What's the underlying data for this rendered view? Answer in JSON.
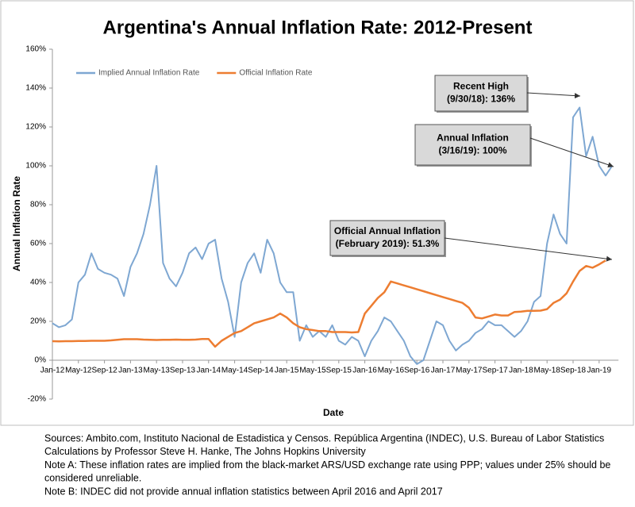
{
  "chart_data": {
    "type": "line",
    "title": "Argentina's Annual Inflation Rate: 2012-Present",
    "x_label": "Date",
    "y_label": "Annual Inflation Rate",
    "categories": [
      "Jan-12",
      null,
      null,
      null,
      "May-12",
      null,
      null,
      null,
      "Sep-12",
      null,
      null,
      null,
      "Jan-13",
      null,
      null,
      null,
      "May-13",
      null,
      null,
      null,
      "Sep-13",
      null,
      null,
      null,
      "Jan-14",
      null,
      null,
      null,
      "May-14",
      null,
      null,
      null,
      "Sep-14",
      null,
      null,
      null,
      "Jan-15",
      null,
      null,
      null,
      "May-15",
      null,
      null,
      null,
      "Sep-15",
      null,
      null,
      null,
      "Jan-16",
      null,
      null,
      null,
      "May-16",
      null,
      null,
      null,
      "Sep-16",
      null,
      null,
      null,
      "Jan-17",
      null,
      null,
      null,
      "May-17",
      null,
      null,
      null,
      "Sep-17",
      null,
      null,
      null,
      "Jan-18",
      null,
      null,
      null,
      "May-18",
      null,
      null,
      null,
      "Sep-18",
      null,
      null,
      null,
      "Jan-19",
      null,
      null
    ],
    "series": [
      {
        "name": "Implied Annual Inflation Rate",
        "color": "#7ea7d2",
        "values": [
          19,
          17,
          18,
          21,
          40,
          44,
          55,
          47,
          45,
          44,
          42,
          33,
          48,
          55,
          65,
          80,
          100,
          50,
          42,
          38,
          45,
          55,
          58,
          52,
          60,
          62,
          42,
          30,
          12,
          40,
          50,
          55,
          45,
          62,
          55,
          40,
          35,
          35,
          10,
          18,
          12,
          15,
          12,
          18,
          10,
          8,
          12,
          10,
          2,
          10,
          15,
          22,
          20,
          15,
          10,
          2,
          -2,
          0,
          10,
          20,
          18,
          10,
          5,
          8,
          10,
          14,
          16,
          20,
          18,
          18,
          15,
          12,
          15,
          20,
          30,
          33,
          60,
          75,
          65,
          60,
          125,
          130,
          105,
          115,
          100,
          95,
          100
        ]
      },
      {
        "name": "Official Inflation Rate",
        "color": "#ed7d31",
        "values": [
          9.8,
          9.7,
          9.8,
          9.8,
          9.9,
          9.9,
          10,
          10,
          10,
          10.2,
          10.5,
          10.8,
          10.8,
          10.8,
          10.6,
          10.5,
          10.4,
          10.5,
          10.5,
          10.6,
          10.5,
          10.5,
          10.6,
          10.9,
          10.9,
          7,
          10,
          12,
          14,
          15,
          17,
          19,
          20,
          21,
          22,
          24,
          22,
          19,
          17,
          16,
          15.5,
          15,
          15,
          14.5,
          14.5,
          14.5,
          14.3,
          14.5,
          24,
          28,
          32,
          35,
          40.5,
          39.5,
          38.5,
          37.5,
          36.5,
          35.5,
          34.5,
          33.5,
          32.5,
          31.5,
          30.5,
          29.5,
          27,
          22,
          21.5,
          22.5,
          23.5,
          23,
          23,
          24.8,
          25,
          25.4,
          25.4,
          25.5,
          26.3,
          29.5,
          31.2,
          34.4,
          40.5,
          45.9,
          48.5,
          47.6,
          49.3,
          51.3,
          null
        ]
      }
    ],
    "ylim": [
      -20,
      160
    ],
    "yticks": [
      {
        "value": -20,
        "label": "-20%"
      },
      {
        "value": 0,
        "label": "0%"
      },
      {
        "value": 20,
        "label": "20%"
      },
      {
        "value": 40,
        "label": "40%"
      },
      {
        "value": 60,
        "label": "60%"
      },
      {
        "value": 80,
        "label": "80%"
      },
      {
        "value": 100,
        "label": "100%"
      },
      {
        "value": 120,
        "label": "120%"
      },
      {
        "value": 140,
        "label": "140%"
      },
      {
        "value": 160,
        "label": "160%"
      }
    ],
    "grid": false,
    "legend": "top-left",
    "annotations": [
      {
        "lines": [
          "Recent High",
          "(9/30/18): 136%"
        ]
      },
      {
        "lines": [
          "Annual Inflation",
          "(3/16/19): 100%"
        ]
      },
      {
        "lines": [
          "Official Annual Inflation",
          "(February 2019): 51.3%"
        ]
      }
    ],
    "notes": [
      "Sources: Ambito.com, Instituto Nacional de Estadistica y Censos. República Argentina (INDEC), U.S. Bureau of Labor Statistics",
      "Calculations by Professor Steve H. Hanke, The Johns Hopkins University",
      "Note A: These inflation rates are implied from the black-market ARS/USD exchange rate using PPP; values under 25% should be",
      "considered unreliable.",
      "Note B: INDEC did not provide annual inflation statistics between April 2016 and April 2017"
    ]
  }
}
